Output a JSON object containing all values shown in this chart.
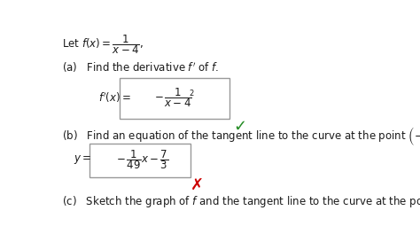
{
  "bg_color": "#ffffff",
  "text_color": "#1a1a1a",
  "red_color": "#cc0000",
  "green_color": "#228B22",
  "fig_width": 4.74,
  "fig_height": 2.64,
  "dpi": 100
}
